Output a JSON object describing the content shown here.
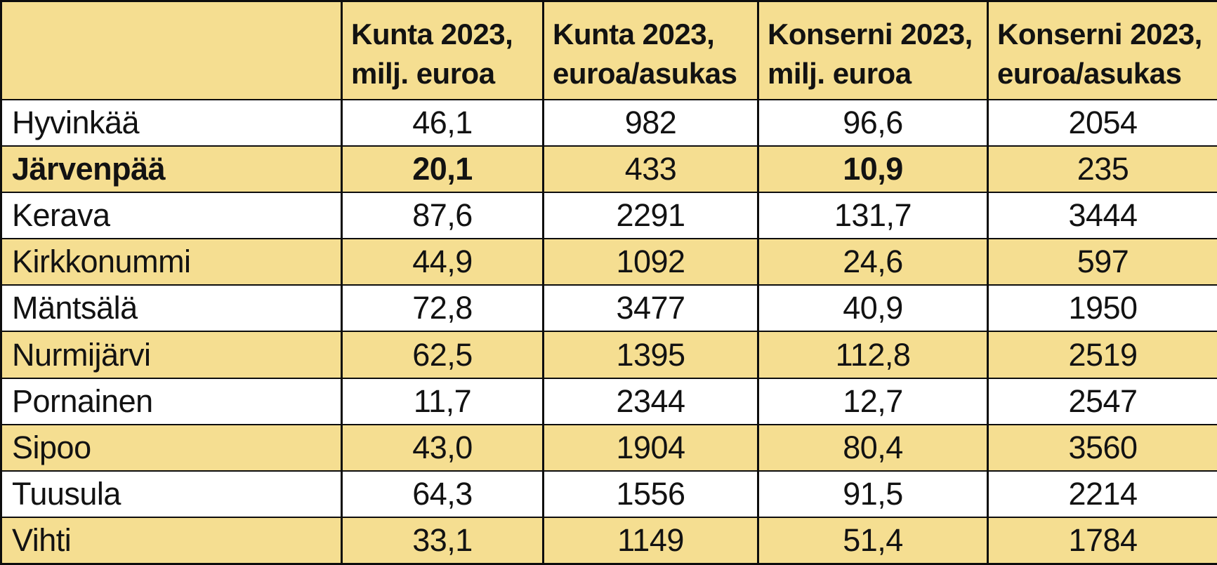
{
  "colors": {
    "row_highlight": "#f5de91",
    "row_plain": "#ffffff",
    "border": "#0d0d0d",
    "text": "#121212"
  },
  "table": {
    "headers": [
      "",
      "Kunta 2023,\nmilj. euroa",
      "Kunta 2023,\neuroa/asukas",
      "Konserni 2023,\nmilj. euroa",
      "Konserni 2023,\neuroa/asukas"
    ],
    "rows": [
      {
        "name": "Hyvinkää",
        "values": [
          "46,1",
          "982",
          "96,6",
          "2054"
        ],
        "emphasized": false
      },
      {
        "name": "Järvenpää",
        "values": [
          "20,1",
          "433",
          "10,9",
          "235"
        ],
        "emphasized": true
      },
      {
        "name": "Kerava",
        "values": [
          "87,6",
          "2291",
          "131,7",
          "3444"
        ],
        "emphasized": false
      },
      {
        "name": "Kirkkonummi",
        "values": [
          "44,9",
          "1092",
          "24,6",
          "597"
        ],
        "emphasized": false
      },
      {
        "name": "Mäntsälä",
        "values": [
          "72,8",
          "3477",
          "40,9",
          "1950"
        ],
        "emphasized": false
      },
      {
        "name": "Nurmijärvi",
        "values": [
          "62,5",
          "1395",
          "112,8",
          "2519"
        ],
        "emphasized": false
      },
      {
        "name": "Pornainen",
        "values": [
          "11,7",
          "2344",
          "12,7",
          "2547"
        ],
        "emphasized": false
      },
      {
        "name": "Sipoo",
        "values": [
          "43,0",
          "1904",
          "80,4",
          "3560"
        ],
        "emphasized": false
      },
      {
        "name": "Tuusula",
        "values": [
          "64,3",
          "1556",
          "91,5",
          "2214"
        ],
        "emphasized": false
      },
      {
        "name": "Vihti",
        "values": [
          "33,1",
          "1149",
          "51,4",
          "1784"
        ],
        "emphasized": false
      }
    ]
  },
  "chart_data": {
    "type": "table",
    "title": "",
    "columns": [
      "Kunta 2023, milj. euroa",
      "Kunta 2023, euroa/asukas",
      "Konserni 2023, milj. euroa",
      "Konserni 2023, euroa/asukas"
    ],
    "rows": [
      {
        "label": "Hyvinkää",
        "values": [
          46.1,
          982,
          96.6,
          2054
        ]
      },
      {
        "label": "Järvenpää",
        "values": [
          20.1,
          433,
          10.9,
          235
        ]
      },
      {
        "label": "Kerava",
        "values": [
          87.6,
          2291,
          131.7,
          3444
        ]
      },
      {
        "label": "Kirkkonummi",
        "values": [
          44.9,
          1092,
          24.6,
          597
        ]
      },
      {
        "label": "Mäntsälä",
        "values": [
          72.8,
          3477,
          40.9,
          1950
        ]
      },
      {
        "label": "Nurmijärvi",
        "values": [
          62.5,
          1395,
          112.8,
          2519
        ]
      },
      {
        "label": "Pornainen",
        "values": [
          11.7,
          2344,
          12.7,
          2547
        ]
      },
      {
        "label": "Sipoo",
        "values": [
          43.0,
          1904,
          80.4,
          3560
        ]
      },
      {
        "label": "Tuusula",
        "values": [
          64.3,
          1556,
          91.5,
          2214
        ]
      },
      {
        "label": "Vihti",
        "values": [
          33.1,
          1149,
          51.4,
          1784
        ]
      }
    ],
    "layout": {
      "striped": true,
      "stripe_color": "#f5de91",
      "emphasized_row": "Järvenpää"
    }
  }
}
